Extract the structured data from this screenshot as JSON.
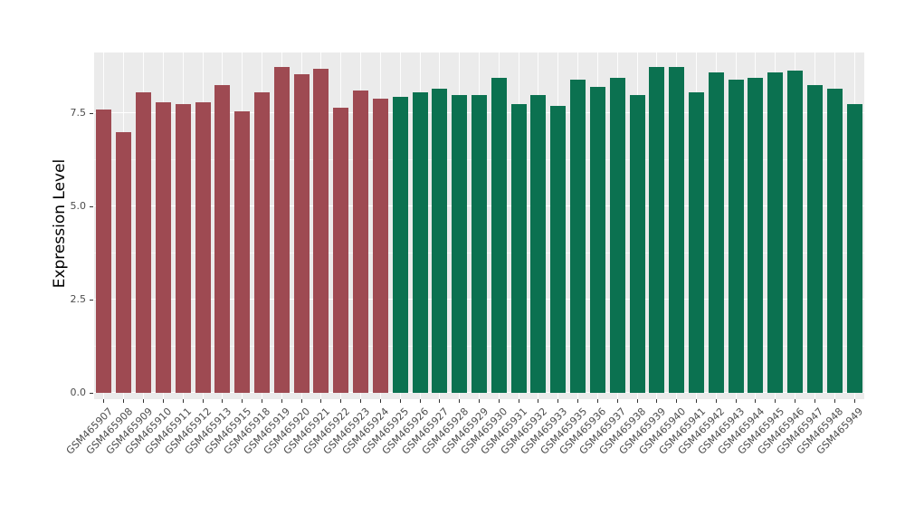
{
  "figure": {
    "background": "#FFFFFF",
    "panel_background": "#EBEBEB",
    "gridline_color": "#FFFFFF",
    "axis_text_color": "#4D4D4D"
  },
  "chart_data": {
    "type": "bar",
    "title": "",
    "xlabel": "",
    "ylabel": "Expression Level",
    "ylim": [
      0,
      9.13
    ],
    "yticks": [
      "0.0",
      "2.5",
      "5.0",
      "7.5"
    ],
    "ytick_values": [
      0,
      2.5,
      5,
      7.5
    ],
    "minor_ytick_values": [
      1.25,
      3.75,
      6.25
    ],
    "grid": true,
    "legend": false,
    "categories": [
      "GSM465907",
      "GSM465908",
      "GSM465909",
      "GSM465910",
      "GSM465911",
      "GSM465912",
      "GSM465913",
      "GSM465915",
      "GSM465918",
      "GSM465919",
      "GSM465920",
      "GSM465921",
      "GSM465922",
      "GSM465923",
      "GSM465924",
      "GSM465925",
      "GSM465926",
      "GSM465927",
      "GSM465928",
      "GSM465929",
      "GSM465930",
      "GSM465931",
      "GSM465932",
      "GSM465933",
      "GSM465935",
      "GSM465936",
      "GSM465937",
      "GSM465938",
      "GSM465939",
      "GSM465940",
      "GSM465941",
      "GSM465942",
      "GSM465943",
      "GSM465944",
      "GSM465945",
      "GSM465946",
      "GSM465947",
      "GSM465948",
      "GSM465949"
    ],
    "values": [
      7.6,
      7.0,
      8.05,
      7.8,
      7.75,
      7.8,
      8.25,
      7.55,
      8.05,
      8.75,
      8.55,
      8.7,
      7.65,
      8.1,
      7.9,
      7.95,
      8.05,
      8.15,
      8.0,
      8.0,
      8.45,
      7.75,
      8.0,
      7.7,
      8.4,
      8.2,
      8.45,
      8.0,
      8.75,
      8.75,
      8.05,
      8.6,
      8.4,
      8.45,
      8.6,
      8.65,
      8.25,
      8.15,
      7.75
    ],
    "series": [
      {
        "name": "GSM465907-GSM465924",
        "color": "#9E4A52",
        "count": 15
      },
      {
        "name": "GSM465925-GSM465949",
        "color": "#0B7150",
        "count": 24
      }
    ]
  }
}
